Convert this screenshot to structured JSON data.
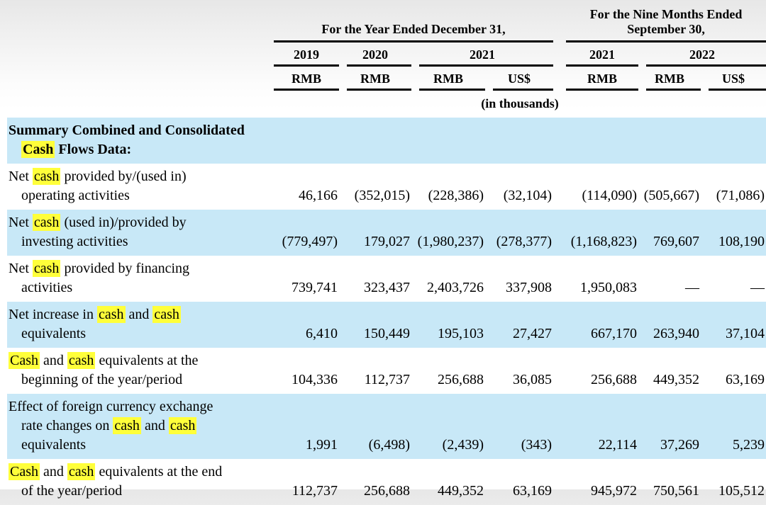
{
  "table": {
    "highlight_word": "cash",
    "units_note": "(in thousands)",
    "colors": {
      "row_shade": "#c8e8f7",
      "search_highlight": "#ffff3a",
      "rule": "#000000"
    },
    "col_groups": [
      {
        "title": "For the Year Ended December 31,",
        "years": [
          {
            "label": "2019",
            "currencies": [
              "RMB"
            ]
          },
          {
            "label": "2020",
            "currencies": [
              "RMB"
            ]
          },
          {
            "label": "2021",
            "currencies": [
              "RMB",
              "US$"
            ]
          }
        ]
      },
      {
        "title": "For the Nine Months Ended September 30,",
        "years": [
          {
            "label": "2021",
            "currencies": [
              "RMB"
            ]
          },
          {
            "label": "2022",
            "currencies": [
              "RMB",
              "US$"
            ]
          }
        ]
      }
    ],
    "rows": [
      {
        "label_lines": [
          "Summary Combined and Consolidated",
          "Cash Flows Data:"
        ],
        "bold": true,
        "shaded": true,
        "values": [
          "",
          "",
          "",
          "",
          "",
          "",
          ""
        ]
      },
      {
        "label_lines": [
          "Net cash provided by/(used in)",
          "operating activities"
        ],
        "bold": false,
        "shaded": false,
        "values": [
          "46,166",
          "(352,015)",
          "(228,386)",
          "(32,104)",
          "(114,090)",
          "(505,667)",
          "(71,086)"
        ]
      },
      {
        "label_lines": [
          "Net cash (used in)/provided by",
          "investing activities"
        ],
        "bold": false,
        "shaded": true,
        "values": [
          "(779,497)",
          "179,027",
          "(1,980,237)",
          "(278,377)",
          "(1,168,823)",
          "769,607",
          "108,190"
        ]
      },
      {
        "label_lines": [
          "Net cash provided by financing",
          "activities"
        ],
        "bold": false,
        "shaded": false,
        "values": [
          "739,741",
          "323,437",
          "2,403,726",
          "337,908",
          "1,950,083",
          "—",
          "—"
        ]
      },
      {
        "label_lines": [
          "Net increase in cash and cash",
          "equivalents"
        ],
        "bold": false,
        "shaded": true,
        "values": [
          "6,410",
          "150,449",
          "195,103",
          "27,427",
          "667,170",
          "263,940",
          "37,104"
        ]
      },
      {
        "label_lines": [
          "Cash and cash equivalents at the",
          "beginning of the year/period"
        ],
        "bold": false,
        "shaded": false,
        "values": [
          "104,336",
          "112,737",
          "256,688",
          "36,085",
          "256,688",
          "449,352",
          "63,169"
        ]
      },
      {
        "label_lines": [
          "Effect of foreign currency exchange",
          "rate changes on cash and cash",
          "equivalents"
        ],
        "bold": false,
        "shaded": true,
        "values": [
          "1,991",
          "(6,498)",
          "(2,439)",
          "(343)",
          "22,114",
          "37,269",
          "5,239"
        ]
      },
      {
        "label_lines": [
          "Cash and cash equivalents at the end",
          "of the year/period"
        ],
        "bold": false,
        "shaded": false,
        "values": [
          "112,737",
          "256,688",
          "449,352",
          "63,169",
          "945,972",
          "750,561",
          "105,512"
        ]
      }
    ]
  }
}
